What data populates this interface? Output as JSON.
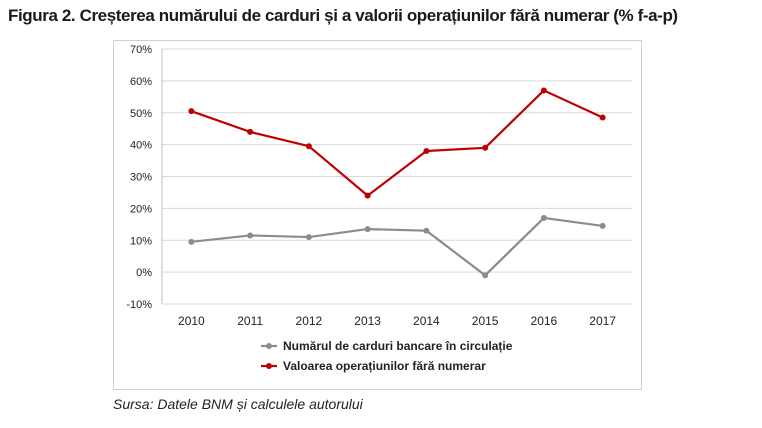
{
  "title": "Figura 2. Creșterea numărului de carduri și a valorii operațiunilor fără numerar (% f-a-p)",
  "source": "Sursa: Datele BNM și calculele autorului",
  "chart_data": {
    "type": "line",
    "x": [
      "2010",
      "2011",
      "2012",
      "2013",
      "2014",
      "2015",
      "2016",
      "2017"
    ],
    "y_ticks": [
      "70%",
      "60%",
      "50%",
      "40%",
      "30%",
      "20%",
      "10%",
      "0%",
      "-10%"
    ],
    "ylim": [
      -10,
      70
    ],
    "grid": true,
    "legend_position": "bottom",
    "series": [
      {
        "name": "Numărul de carduri bancare în circulație",
        "color": "#8c8c8c",
        "values": [
          9.5,
          11.5,
          11,
          13.5,
          13,
          -1,
          17,
          14.5
        ]
      },
      {
        "name": "Valoarea operațiunilor fără numerar",
        "color": "#c00000",
        "values": [
          50.5,
          44,
          39.5,
          24,
          38,
          39,
          57,
          48.5
        ]
      }
    ]
  }
}
